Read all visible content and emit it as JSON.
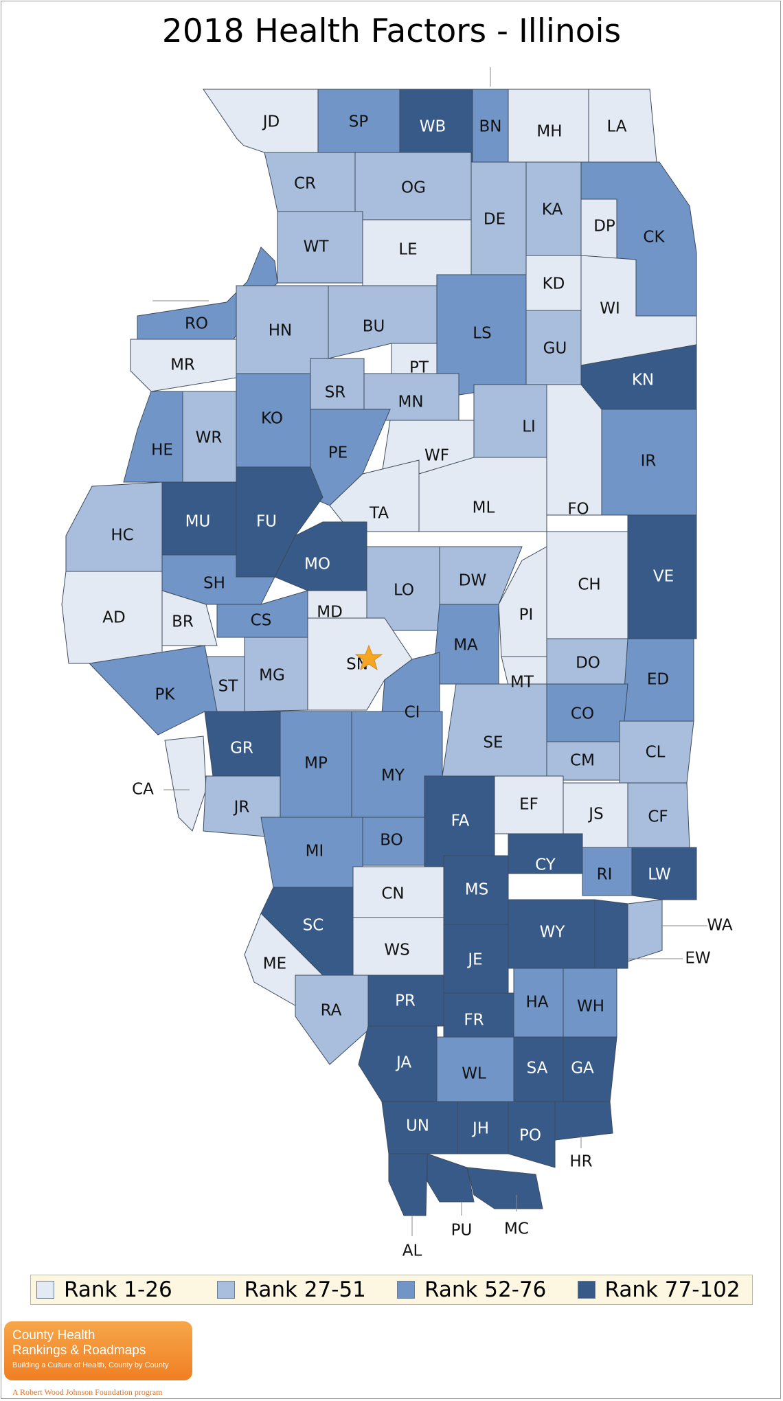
{
  "title": "2018 Health Factors - Illinois",
  "colors": {
    "rank_1_26": "#e3eaf3",
    "rank_27_51": "#a8bedc",
    "rank_52_76": "#7195c6",
    "rank_77_102": "#375a88",
    "marker": "#f5a623"
  },
  "legend": [
    {
      "label": "Rank 1-26",
      "tier": 1
    },
    {
      "label": "Rank 27-51",
      "tier": 2
    },
    {
      "label": "Rank 52-76",
      "tier": 3
    },
    {
      "label": "Rank 77-102",
      "tier": 4
    }
  ],
  "counties": [
    {
      "code": "JD",
      "tier": 1
    },
    {
      "code": "SP",
      "tier": 3
    },
    {
      "code": "WB",
      "tier": 4
    },
    {
      "code": "BN",
      "tier": 3
    },
    {
      "code": "MH",
      "tier": 1
    },
    {
      "code": "LA",
      "tier": 1
    },
    {
      "code": "CR",
      "tier": 2
    },
    {
      "code": "OG",
      "tier": 2
    },
    {
      "code": "DE",
      "tier": 2
    },
    {
      "code": "KA",
      "tier": 2
    },
    {
      "code": "DP",
      "tier": 1
    },
    {
      "code": "CK",
      "tier": 3
    },
    {
      "code": "RO",
      "tier": 3
    },
    {
      "code": "WT",
      "tier": 2
    },
    {
      "code": "LE",
      "tier": 1
    },
    {
      "code": "KD",
      "tier": 1
    },
    {
      "code": "WI",
      "tier": 1
    },
    {
      "code": "HN",
      "tier": 2
    },
    {
      "code": "BU",
      "tier": 2
    },
    {
      "code": "LS",
      "tier": 3
    },
    {
      "code": "GU",
      "tier": 2
    },
    {
      "code": "MR",
      "tier": 1
    },
    {
      "code": "PT",
      "tier": 1
    },
    {
      "code": "KN",
      "tier": 4
    },
    {
      "code": "SR",
      "tier": 2
    },
    {
      "code": "MN",
      "tier": 2
    },
    {
      "code": "KO",
      "tier": 3
    },
    {
      "code": "HE",
      "tier": 3
    },
    {
      "code": "WR",
      "tier": 2
    },
    {
      "code": "PE",
      "tier": 3
    },
    {
      "code": "WF",
      "tier": 1
    },
    {
      "code": "LI",
      "tier": 2
    },
    {
      "code": "IR",
      "tier": 3
    },
    {
      "code": "HC",
      "tier": 2
    },
    {
      "code": "MU",
      "tier": 4
    },
    {
      "code": "FU",
      "tier": 4
    },
    {
      "code": "TA",
      "tier": 1
    },
    {
      "code": "ML",
      "tier": 1
    },
    {
      "code": "FO",
      "tier": 1
    },
    {
      "code": "MO",
      "tier": 4
    },
    {
      "code": "AD",
      "tier": 1
    },
    {
      "code": "SH",
      "tier": 3
    },
    {
      "code": "LO",
      "tier": 2
    },
    {
      "code": "DW",
      "tier": 2
    },
    {
      "code": "CH",
      "tier": 1
    },
    {
      "code": "VE",
      "tier": 4
    },
    {
      "code": "BR",
      "tier": 1
    },
    {
      "code": "CS",
      "tier": 3
    },
    {
      "code": "MD",
      "tier": 1
    },
    {
      "code": "PI",
      "tier": 1
    },
    {
      "code": "SN",
      "tier": 1
    },
    {
      "code": "MA",
      "tier": 3
    },
    {
      "code": "ST",
      "tier": 2
    },
    {
      "code": "MG",
      "tier": 2
    },
    {
      "code": "PK",
      "tier": 3
    },
    {
      "code": "DO",
      "tier": 2
    },
    {
      "code": "MT",
      "tier": 1
    },
    {
      "code": "ED",
      "tier": 3
    },
    {
      "code": "CI",
      "tier": 3
    },
    {
      "code": "CO",
      "tier": 3
    },
    {
      "code": "GR",
      "tier": 4
    },
    {
      "code": "MP",
      "tier": 3
    },
    {
      "code": "SE",
      "tier": 2
    },
    {
      "code": "CM",
      "tier": 2
    },
    {
      "code": "CL",
      "tier": 2
    },
    {
      "code": "MY",
      "tier": 3
    },
    {
      "code": "CA",
      "tier": 1
    },
    {
      "code": "JR",
      "tier": 2
    },
    {
      "code": "FA",
      "tier": 4
    },
    {
      "code": "EF",
      "tier": 1
    },
    {
      "code": "JS",
      "tier": 1
    },
    {
      "code": "CF",
      "tier": 2
    },
    {
      "code": "BO",
      "tier": 3
    },
    {
      "code": "MI",
      "tier": 3
    },
    {
      "code": "CY",
      "tier": 4
    },
    {
      "code": "RI",
      "tier": 3
    },
    {
      "code": "LW",
      "tier": 4
    },
    {
      "code": "CN",
      "tier": 1
    },
    {
      "code": "MS",
      "tier": 4
    },
    {
      "code": "SC",
      "tier": 4
    },
    {
      "code": "WA",
      "tier": 2
    },
    {
      "code": "WY",
      "tier": 4
    },
    {
      "code": "WS",
      "tier": 1
    },
    {
      "code": "EW",
      "tier": 4
    },
    {
      "code": "ME",
      "tier": 1
    },
    {
      "code": "JE",
      "tier": 4
    },
    {
      "code": "RA",
      "tier": 2
    },
    {
      "code": "PR",
      "tier": 4
    },
    {
      "code": "HA",
      "tier": 3
    },
    {
      "code": "WH",
      "tier": 3
    },
    {
      "code": "FR",
      "tier": 4
    },
    {
      "code": "JA",
      "tier": 4
    },
    {
      "code": "WL",
      "tier": 3
    },
    {
      "code": "SA",
      "tier": 4
    },
    {
      "code": "GA",
      "tier": 4
    },
    {
      "code": "UN",
      "tier": 4
    },
    {
      "code": "JH",
      "tier": 4
    },
    {
      "code": "PO",
      "tier": 4
    },
    {
      "code": "HR",
      "tier": 4
    },
    {
      "code": "AL",
      "tier": 4
    },
    {
      "code": "PU",
      "tier": 4
    },
    {
      "code": "MC",
      "tier": 4
    }
  ],
  "logo": {
    "line1": "County Health",
    "line2": "Rankings & Roadmaps",
    "tagline": "Building a Culture of Health, County by County",
    "program": "A Robert Wood Johnson Foundation program"
  }
}
